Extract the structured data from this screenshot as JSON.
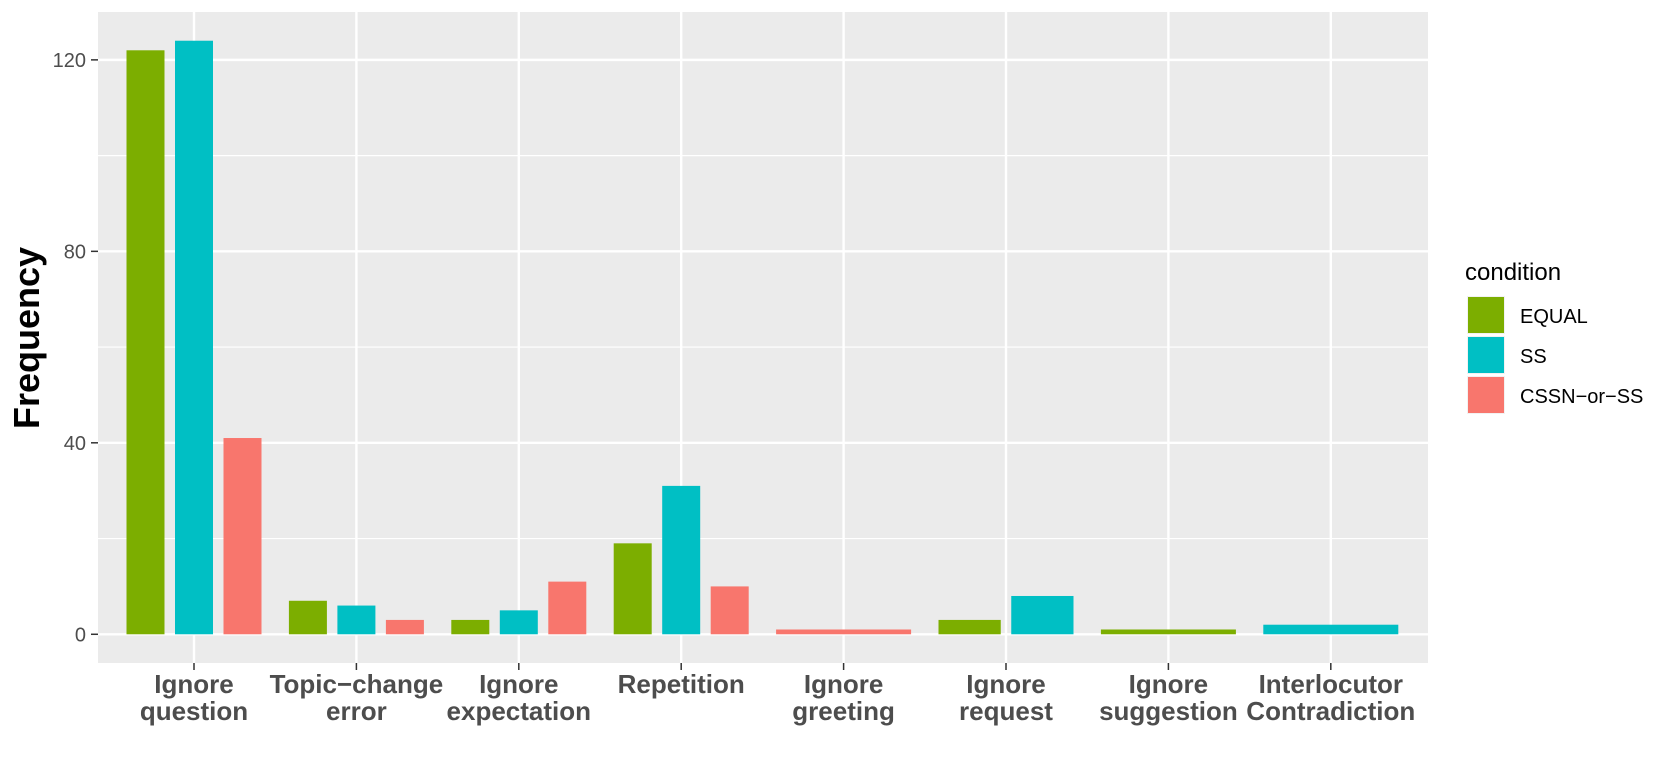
{
  "chart_data": {
    "type": "bar",
    "ylabel": "Frequency",
    "xlabel": "",
    "ylim": [
      -6,
      130
    ],
    "yticks": [
      0,
      40,
      80,
      120
    ],
    "grid": true,
    "legend_position": "right",
    "legend_title": "condition",
    "categories": [
      [
        "Ignore",
        "question"
      ],
      [
        "Topic−change",
        "error"
      ],
      [
        "Ignore",
        "expectation"
      ],
      [
        "Repetition"
      ],
      [
        "Ignore",
        "greeting"
      ],
      [
        "Ignore",
        "request"
      ],
      [
        "Ignore",
        "suggestion"
      ],
      [
        "Interlocutor",
        "Contradiction"
      ]
    ],
    "series": [
      {
        "name": "EQUAL",
        "color": "#7CAE00",
        "values": [
          122,
          7,
          3,
          19,
          null,
          3,
          1,
          null
        ]
      },
      {
        "name": "SS",
        "color": "#00BFC4",
        "values": [
          124,
          6,
          5,
          31,
          null,
          8,
          null,
          2
        ]
      },
      {
        "name": "CSSN−or−SS",
        "color": "#F8766D",
        "values": [
          41,
          3,
          11,
          10,
          1,
          null,
          null,
          null
        ]
      }
    ]
  }
}
